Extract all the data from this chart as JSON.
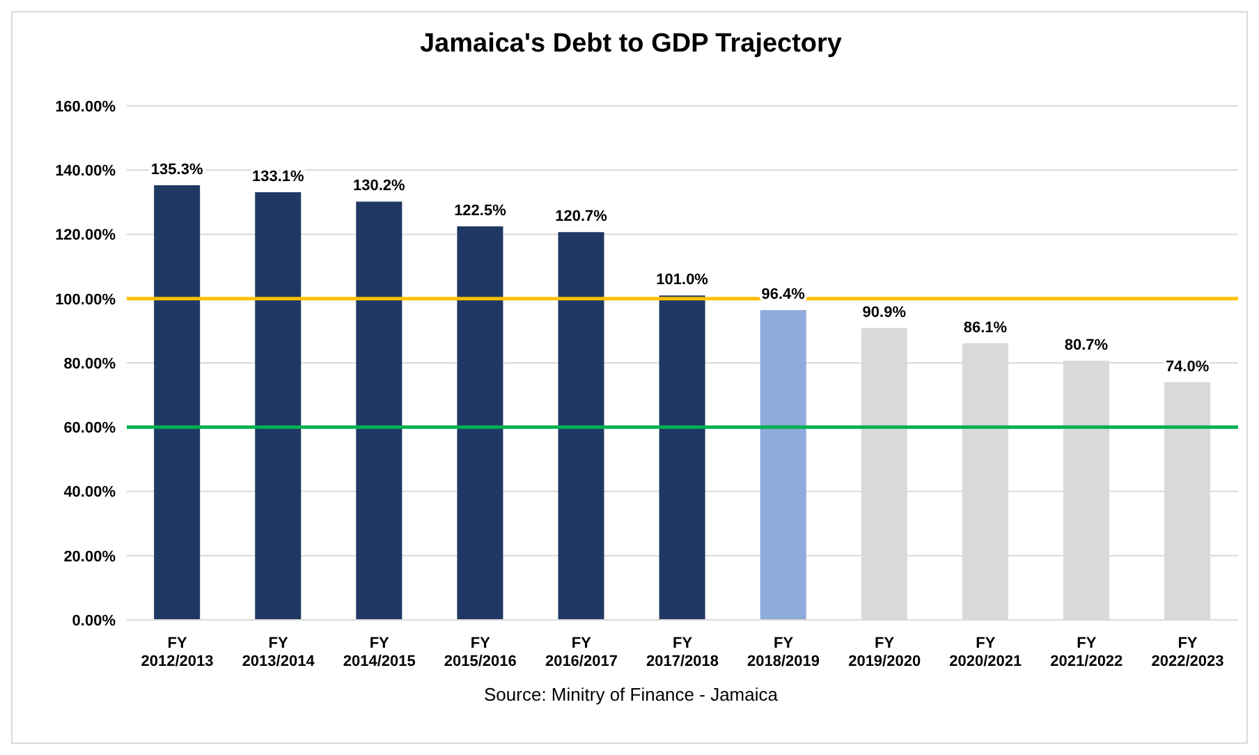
{
  "chart_data": {
    "type": "bar",
    "title": "Jamaica's Debt to GDP Trajectory",
    "categories": [
      "FY 2012/2013",
      "FY 2013/2014",
      "FY 2014/2015",
      "FY 2015/2016",
      "FY 2016/2017",
      "FY 2017/2018",
      "FY 2018/2019",
      "FY 2019/2020",
      "FY 2020/2021",
      "FY 2021/2022",
      "FY 2022/2023"
    ],
    "values": [
      135.3,
      133.1,
      130.2,
      122.5,
      120.7,
      101.0,
      96.4,
      90.9,
      86.1,
      80.7,
      74.0
    ],
    "value_labels": [
      "135.3%",
      "133.1%",
      "130.2%",
      "122.5%",
      "120.7%",
      "101.0%",
      "96.4%",
      "90.9%",
      "86.1%",
      "80.7%",
      "74.0%"
    ],
    "colors": [
      "#1f3864",
      "#1f3864",
      "#1f3864",
      "#1f3864",
      "#1f3864",
      "#1f3864",
      "#8faadc",
      "#d9d9d9",
      "#d9d9d9",
      "#d9d9d9",
      "#d9d9d9"
    ],
    "ylim": [
      0,
      160
    ],
    "yticks": [
      {
        "value": 0,
        "label": "0.00%"
      },
      {
        "value": 20,
        "label": "20.00%"
      },
      {
        "value": 40,
        "label": "40.00%"
      },
      {
        "value": 60,
        "label": "60.00%"
      },
      {
        "value": 80,
        "label": "80.00%"
      },
      {
        "value": 100,
        "label": "100.00%"
      },
      {
        "value": 120,
        "label": "120.00%"
      },
      {
        "value": 140,
        "label": "140.00%"
      },
      {
        "value": 160,
        "label": "160.00%"
      }
    ],
    "ref_lines": [
      {
        "axis": "y",
        "value": 100,
        "color": "#ffc000"
      },
      {
        "axis": "y",
        "value": 60,
        "color": "#00b050"
      }
    ],
    "grid": "y",
    "legend": false,
    "annotations": [
      "Source: Minitry of Finance - Jamaica"
    ]
  }
}
